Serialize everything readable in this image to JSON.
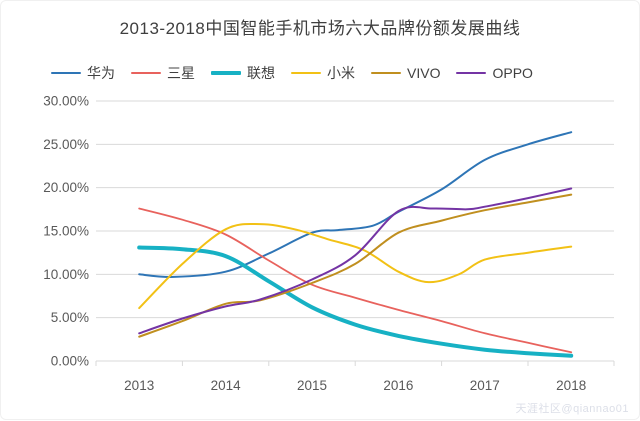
{
  "title": "2013-2018中国智能手机市场六大品牌份额发展曲线",
  "watermark": "天涯社区@qiannao01",
  "chart_data": {
    "type": "line",
    "title": "2013-2018中国智能手机市场六大品牌份额发展曲线",
    "xlabel": "",
    "ylabel": "",
    "ylim": [
      0,
      30
    ],
    "grid": "horizontal",
    "legend_position": "top",
    "ytick_labels": [
      "30.00%",
      "25.00%",
      "20.00%",
      "15.00%",
      "10.00%",
      "5.00%",
      "0.00%"
    ],
    "categories": [
      "2013",
      "2014",
      "2015",
      "2016",
      "2017",
      "2018"
    ],
    "series": [
      {
        "id": "huawei",
        "name": "华为",
        "color": "#2e75b6",
        "width": 2,
        "yearly_share_pct": {
          "2013": 10.0,
          "2014": 10.3,
          "2015": 14.8,
          "2016": 17.2,
          "2017": 23.2,
          "2018": 26.4
        },
        "points": [
          [
            2013,
            10.0
          ],
          [
            2013.4,
            9.7
          ],
          [
            2014,
            10.3
          ],
          [
            2014.5,
            12.4
          ],
          [
            2015,
            14.8
          ],
          [
            2015.3,
            15.1
          ],
          [
            2015.7,
            15.6
          ],
          [
            2016,
            17.2
          ],
          [
            2016.5,
            19.8
          ],
          [
            2017,
            23.2
          ],
          [
            2017.5,
            25.0
          ],
          [
            2018,
            26.4
          ]
        ]
      },
      {
        "id": "samsung",
        "name": "三星",
        "color": "#e8625d",
        "width": 1.8,
        "yearly_share_pct": {
          "2013": 17.6,
          "2014": 14.6,
          "2015": 8.8,
          "2016": 5.9,
          "2017": 3.2,
          "2018": 1.0
        },
        "points": [
          [
            2013,
            17.6
          ],
          [
            2013.5,
            16.3
          ],
          [
            2014,
            14.6
          ],
          [
            2014.5,
            11.6
          ],
          [
            2015,
            8.8
          ],
          [
            2015.5,
            7.3
          ],
          [
            2016,
            5.9
          ],
          [
            2016.5,
            4.6
          ],
          [
            2017,
            3.2
          ],
          [
            2017.5,
            2.1
          ],
          [
            2018,
            1.0
          ]
        ]
      },
      {
        "id": "lenovo",
        "name": "联想",
        "color": "#17b1c4",
        "width": 4,
        "yearly_share_pct": {
          "2013": 13.1,
          "2014": 12.1,
          "2015": 6.2,
          "2016": 2.9,
          "2017": 1.3,
          "2018": 0.6
        },
        "points": [
          [
            2013,
            13.1
          ],
          [
            2013.5,
            12.9
          ],
          [
            2014,
            12.1
          ],
          [
            2014.5,
            9.2
          ],
          [
            2015,
            6.2
          ],
          [
            2015.5,
            4.2
          ],
          [
            2016,
            2.9
          ],
          [
            2016.5,
            2.0
          ],
          [
            2017,
            1.3
          ],
          [
            2017.5,
            0.9
          ],
          [
            2018,
            0.6
          ]
        ]
      },
      {
        "id": "xiaomi",
        "name": "小米",
        "color": "#f2c115",
        "width": 2,
        "yearly_share_pct": {
          "2013": 6.1,
          "2014": 15.2,
          "2015": 14.4,
          "2016": 10.3,
          "2017": 11.7,
          "2018": 13.2
        },
        "points": [
          [
            2013,
            6.1
          ],
          [
            2013.5,
            11.2
          ],
          [
            2014,
            15.2
          ],
          [
            2014.4,
            15.8
          ],
          [
            2014.8,
            15.2
          ],
          [
            2015.2,
            14.0
          ],
          [
            2015.6,
            12.8
          ],
          [
            2016,
            10.3
          ],
          [
            2016.35,
            9.1
          ],
          [
            2016.7,
            10.0
          ],
          [
            2017,
            11.7
          ],
          [
            2017.5,
            12.5
          ],
          [
            2018,
            13.2
          ]
        ]
      },
      {
        "id": "vivo",
        "name": "VIVO",
        "color": "#c08f1f",
        "width": 2,
        "yearly_share_pct": {
          "2013": 2.8,
          "2014": 6.6,
          "2015": 9.0,
          "2016": 14.8,
          "2017": 17.4,
          "2018": 19.2
        },
        "points": [
          [
            2013,
            2.8
          ],
          [
            2013.5,
            4.6
          ],
          [
            2014,
            6.6
          ],
          [
            2014.4,
            7.0
          ],
          [
            2015,
            9.0
          ],
          [
            2015.5,
            11.2
          ],
          [
            2016,
            14.8
          ],
          [
            2016.5,
            16.2
          ],
          [
            2017,
            17.4
          ],
          [
            2017.5,
            18.3
          ],
          [
            2018,
            19.2
          ]
        ]
      },
      {
        "id": "oppo",
        "name": "OPPO",
        "color": "#7434a4",
        "width": 2,
        "yearly_share_pct": {
          "2013": 3.2,
          "2014": 6.3,
          "2015": 9.4,
          "2016": 17.3,
          "2017": 17.8,
          "2018": 19.9
        },
        "points": [
          [
            2013,
            3.2
          ],
          [
            2013.5,
            4.9
          ],
          [
            2014,
            6.3
          ],
          [
            2014.4,
            7.1
          ],
          [
            2015,
            9.4
          ],
          [
            2015.5,
            12.2
          ],
          [
            2016,
            17.3
          ],
          [
            2016.4,
            17.6
          ],
          [
            2016.8,
            17.5
          ],
          [
            2017,
            17.8
          ],
          [
            2017.5,
            18.8
          ],
          [
            2018,
            19.9
          ]
        ]
      }
    ]
  }
}
